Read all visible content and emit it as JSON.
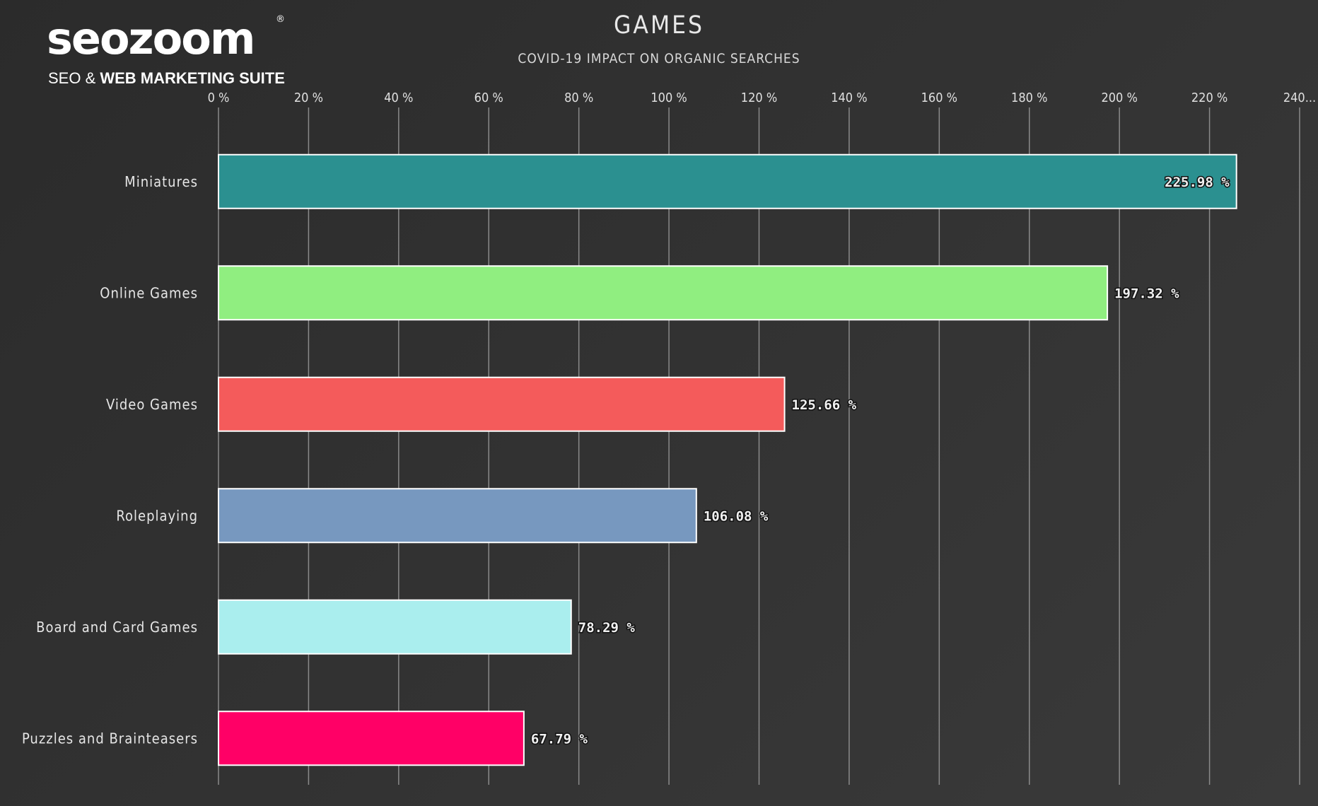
{
  "logo": {
    "wordmark": "seozoom",
    "registered": "®",
    "tagline_light": "SEO & ",
    "tagline_bold": "WEB MARKETING SUITE"
  },
  "colors": {
    "background": "#2f2f2f",
    "grid": "#8a8a8a",
    "bar_border": "#ffffff"
  },
  "chart_data": {
    "type": "bar",
    "orientation": "horizontal",
    "title": "GAMES",
    "subtitle": "COVID-19 IMPACT ON ORGANIC SEARCHES",
    "xlim": [
      0,
      240
    ],
    "x_ticks": [
      0,
      20,
      40,
      60,
      80,
      100,
      120,
      140,
      160,
      180,
      200,
      220,
      240
    ],
    "x_tick_labels": [
      "0 %",
      "20 %",
      "40 %",
      "60 %",
      "80 %",
      "100 %",
      "120 %",
      "140 %",
      "160 %",
      "180 %",
      "200 %",
      "220 %",
      "240..."
    ],
    "grid": true,
    "categories": [
      "Miniatures",
      "Online Games",
      "Video Games",
      "Roleplaying",
      "Board and Card Games",
      "Puzzles and Brainteasers"
    ],
    "values": [
      225.98,
      197.32,
      125.66,
      106.08,
      78.29,
      67.79
    ],
    "value_labels": [
      "225.98 %",
      "197.32 %",
      "125.66 %",
      "106.08 %",
      "78.29 %",
      "67.79 %"
    ],
    "bar_colors": [
      "#2b9090",
      "#90ee80",
      "#f45b5b",
      "#7798bf",
      "#aaeeee",
      "#ff0066"
    ]
  }
}
